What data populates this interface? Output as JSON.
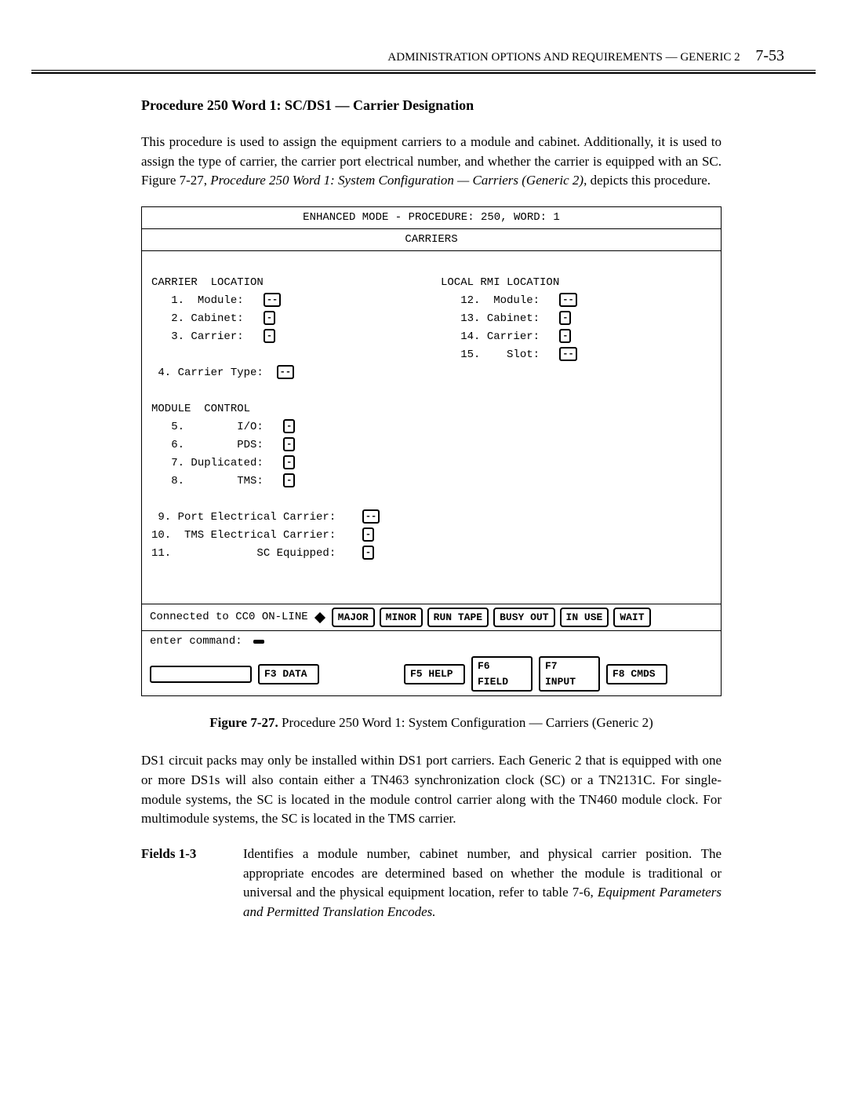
{
  "header": {
    "text": "ADMINISTRATION OPTIONS AND REQUIREMENTS — GENERIC 2",
    "page": "7-53"
  },
  "heading": "Procedure 250 Word 1: SC/DS1 — Carrier Designation",
  "intro": "This procedure is used to assign the equipment carriers to a module and cabinet. Additionally, it is used to assign the type of carrier, the carrier port electrical number, and whether the carrier is equipped with an SC. Figure 7-27, ",
  "intro_em": "Procedure 250 Word 1: System Configuration — Carriers (Generic 2),",
  "intro_end": " depicts this procedure.",
  "terminal": {
    "title": "ENHANCED MODE - PROCEDURE:  250, WORD:  1",
    "subtitle": "CARRIERS",
    "left_section": "CARRIER  LOCATION",
    "right_section": "LOCAL RMI LOCATION",
    "left_fields": {
      "f1": "1.  Module:",
      "f2": "2. Cabinet:",
      "f3": "3. Carrier:"
    },
    "right_fields": {
      "f12": "12.  Module:",
      "f13": "13. Cabinet:",
      "f14": "14. Carrier:",
      "f15": "15.    Slot:"
    },
    "carrier_type": " 4. Carrier Type:",
    "module_control": "MODULE  CONTROL",
    "mc_fields": {
      "f5": "5.        I/O:",
      "f6": "6.        PDS:",
      "f7": "7. Duplicated:",
      "f8": "8.        TMS:"
    },
    "port_fields": {
      "f9": " 9. Port Electrical Carrier:",
      "f10": "10.  TMS Electrical Carrier:",
      "f11": "11.             SC Equipped:"
    },
    "status_left": "Connected  to  CC0  ON-LINE",
    "status_buttons": [
      "MAJOR",
      "MINOR",
      "RUN TAPE",
      "BUSY OUT",
      "IN USE",
      "WAIT"
    ],
    "cmd_label": "enter  command:",
    "fkeys": [
      "F3 DATA",
      "F5 HELP",
      "F6 FIELD",
      "F7 INPUT",
      "F8 CMDS"
    ]
  },
  "fig_caption_bold": "Figure 7-27.",
  "fig_caption_rest": " Procedure 250 Word 1: System Configuration — Carriers (Generic 2)",
  "para2": "DS1 circuit packs may only be installed within DS1 port carriers. Each Generic 2 that is equipped with one or more DS1s will also contain either a TN463 synchronization clock (SC) or a TN2131C. For single-module systems, the SC is located in the module control carrier along with the TN460 module clock. For multimodule systems, the SC is located in the TMS carrier.",
  "field_label": "Fields 1-3",
  "field_text": "Identifies a module number, cabinet number, and physical carrier position. The appropriate encodes are determined based on whether the module is traditional or universal and the physical equipment location, refer to table 7-6, ",
  "field_em": "Equipment Parameters and Permitted Translation Encodes."
}
